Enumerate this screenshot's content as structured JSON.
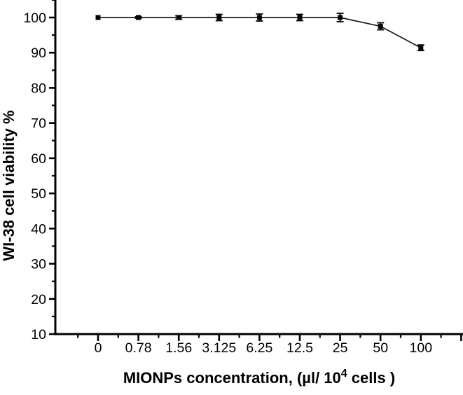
{
  "figure": {
    "background": "#ffffff",
    "ink_color": "#000000",
    "line_color": "#1a1a1a",
    "marker_color": "#000000"
  },
  "chart_data": {
    "type": "line",
    "title": "",
    "ylabel": "WI-38 cell viability %",
    "xlabel_full": "MIONPs concentration, (µl/ 10^4 cells )",
    "xlabel_parts": {
      "prefix": "MIONPs concentration, (µl/ 10",
      "superscript": "4",
      "suffix": " cells )"
    },
    "categories": [
      "0",
      "0.78",
      "1.56",
      "3.125",
      "6.25",
      "12.5",
      "25",
      "50",
      "100"
    ],
    "series": [
      {
        "values": [
          100,
          100,
          100,
          100,
          100,
          100,
          100,
          97.5,
          91.4
        ],
        "errors": [
          0,
          0.2,
          0.5,
          0.9,
          1.0,
          0.9,
          1.2,
          1.0,
          0.8
        ]
      }
    ],
    "y_ticks": [
      10,
      20,
      30,
      40,
      50,
      60,
      70,
      80,
      90,
      100
    ],
    "ylim": [
      10,
      105
    ],
    "marker": "square",
    "error_bars": true,
    "grid": false,
    "legend": "none"
  }
}
